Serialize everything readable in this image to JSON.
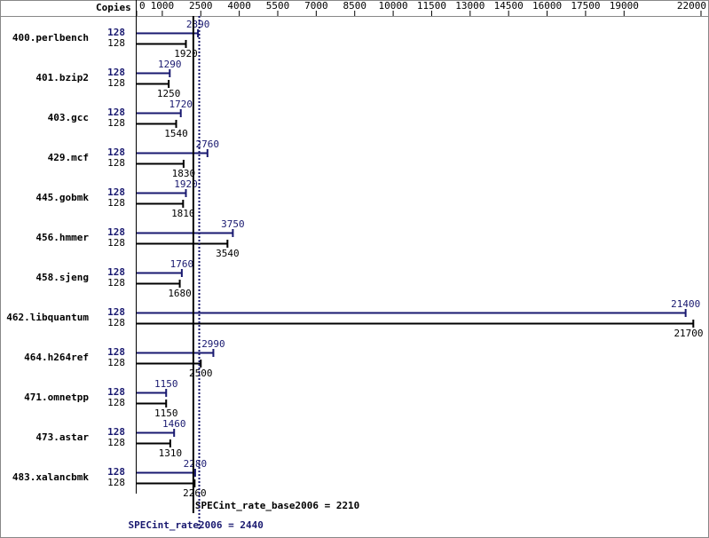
{
  "chart_data": {
    "type": "bar",
    "orientation": "horizontal",
    "copies_label": "Copies",
    "categories": [
      "400.perlbench",
      "401.bzip2",
      "403.gcc",
      "429.mcf",
      "445.gobmk",
      "456.hmmer",
      "458.sjeng",
      "462.libquantum",
      "464.h264ref",
      "471.omnetpp",
      "473.astar",
      "483.xalancbmk"
    ],
    "series": [
      {
        "color": "#191970",
        "copies": [
          128,
          128,
          128,
          128,
          128,
          128,
          128,
          128,
          128,
          128,
          128,
          128
        ],
        "values": [
          2390,
          1290,
          1720,
          2760,
          1920,
          3750,
          1760,
          21400,
          2990,
          1150,
          1460,
          2280
        ]
      },
      {
        "color": "#000000",
        "copies": [
          128,
          128,
          128,
          128,
          128,
          128,
          128,
          128,
          128,
          128,
          128,
          128
        ],
        "values": [
          1920,
          1250,
          1540,
          1830,
          1810,
          3540,
          1680,
          21700,
          2500,
          1150,
          1310,
          2260
        ]
      }
    ],
    "reference_lines": [
      {
        "label": "SPECint_rate_base2006 = 2210",
        "value": 2210,
        "color": "#000000",
        "dashed": false
      },
      {
        "label": "SPECint_rate2006 = 2440",
        "value": 2440,
        "color": "#191970",
        "dashed": true
      }
    ],
    "xlim": [
      0,
      22000
    ],
    "xticks": [
      0,
      1000,
      2500,
      4000,
      5500,
      7000,
      8500,
      10000,
      11500,
      13000,
      14500,
      16000,
      17500,
      19000,
      22000
    ]
  }
}
